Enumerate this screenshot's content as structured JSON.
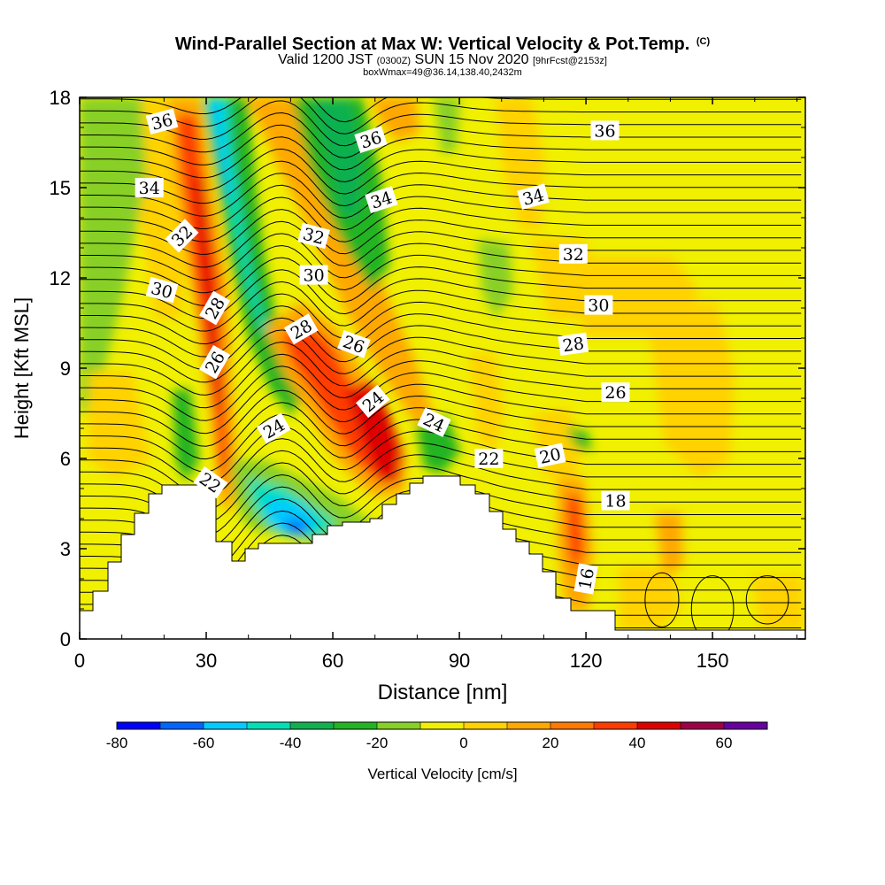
{
  "title": {
    "main": "Wind-Parallel Section at Max W: Vertical Velocity & Pot.Temp.",
    "copyright": "(C)",
    "valid_prefix": "Valid 1200 JST",
    "valid_z": "(0300Z)",
    "valid_date": "SUN 15 Nov 2020",
    "fcst": "[9hrFcst@2153z]",
    "box": "boxWmax=49@36.14,138.40,2432m"
  },
  "chart_data": {
    "type": "contour-cross-section",
    "xlabel": "Distance [nm]",
    "ylabel": "Height [Kft MSL]",
    "xlim": [
      0,
      172
    ],
    "ylim": [
      0,
      18
    ],
    "x_ticks": [
      "0",
      "30",
      "60",
      "90",
      "120",
      "150"
    ],
    "y_ticks": [
      "0",
      "3",
      "6",
      "9",
      "12",
      "15",
      "18"
    ],
    "colorbar": {
      "label": "Vertical Velocity [cm/s]",
      "tick_labels": [
        "-80",
        "-60",
        "-40",
        "-20",
        "0",
        "20",
        "40",
        "60"
      ],
      "min": -80,
      "max": 70,
      "colors": [
        "#0000ff",
        "#0066ff",
        "#00ccff",
        "#00e0b8",
        "#10b050",
        "#22b422",
        "#88d028",
        "#f0f000",
        "#ffd200",
        "#ffa800",
        "#ff7a00",
        "#ff3c00",
        "#e00000",
        "#a00048",
        "#6800a0"
      ]
    },
    "theta_contour_labels": [
      {
        "v": "36",
        "x": 19.5,
        "y": 17.2,
        "rot": -15
      },
      {
        "v": "36",
        "x": 69,
        "y": 16.6,
        "rot": -18
      },
      {
        "v": "36",
        "x": 124.5,
        "y": 16.9,
        "rot": 0
      },
      {
        "v": "34",
        "x": 16.5,
        "y": 15.0,
        "rot": 0
      },
      {
        "v": "34",
        "x": 71.5,
        "y": 14.6,
        "rot": -18
      },
      {
        "v": "34",
        "x": 107.5,
        "y": 14.7,
        "rot": -15
      },
      {
        "v": "32",
        "x": 24.2,
        "y": 13.4,
        "rot": -45
      },
      {
        "v": "32",
        "x": 55.5,
        "y": 13.4,
        "rot": 15
      },
      {
        "v": "32",
        "x": 117,
        "y": 12.8,
        "rot": 0
      },
      {
        "v": "30",
        "x": 19.5,
        "y": 11.6,
        "rot": 15
      },
      {
        "v": "30",
        "x": 55.5,
        "y": 12.1,
        "rot": 0
      },
      {
        "v": "30",
        "x": 123,
        "y": 11.1,
        "rot": 0
      },
      {
        "v": "28",
        "x": 32,
        "y": 11.0,
        "rot": -60
      },
      {
        "v": "28",
        "x": 52.5,
        "y": 10.3,
        "rot": -30
      },
      {
        "v": "28",
        "x": 117,
        "y": 9.8,
        "rot": -8
      },
      {
        "v": "26",
        "x": 32,
        "y": 9.2,
        "rot": -60
      },
      {
        "v": "26",
        "x": 65,
        "y": 9.8,
        "rot": 20
      },
      {
        "v": "26",
        "x": 127,
        "y": 8.2,
        "rot": 0
      },
      {
        "v": "24",
        "x": 46,
        "y": 7.0,
        "rot": -30
      },
      {
        "v": "24",
        "x": 69.5,
        "y": 7.9,
        "rot": -40
      },
      {
        "v": "24",
        "x": 84,
        "y": 7.2,
        "rot": 25
      },
      {
        "v": "22",
        "x": 31,
        "y": 5.2,
        "rot": 35
      },
      {
        "v": "22",
        "x": 97,
        "y": 6.0,
        "rot": 0
      },
      {
        "v": "20",
        "x": 111.5,
        "y": 6.1,
        "rot": -12
      },
      {
        "v": "18",
        "x": 127,
        "y": 4.6,
        "rot": 0
      },
      {
        "v": "16",
        "x": 120,
        "y": 2.0,
        "rot": -80
      }
    ]
  }
}
